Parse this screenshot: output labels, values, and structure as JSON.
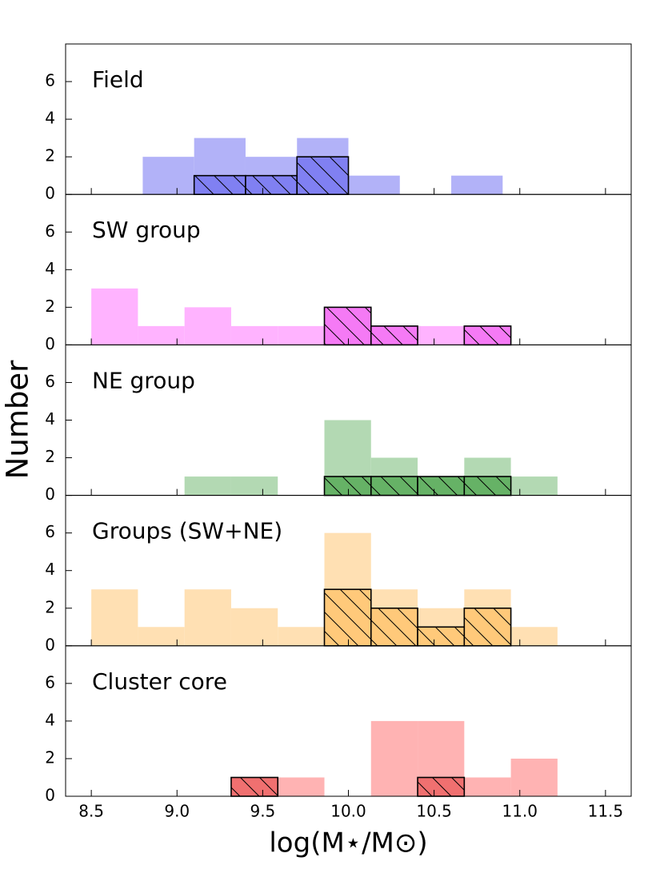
{
  "chart_data": [
    {
      "type": "histogram",
      "title": "Field",
      "bins": [
        8.8,
        9.1,
        9.4,
        9.7,
        10.0,
        10.3,
        10.6,
        10.9
      ],
      "series": [
        {
          "color": "#b2b2f8",
          "values": [
            2,
            3,
            2,
            3,
            1,
            0,
            1
          ]
        },
        {
          "color": "#8080f2",
          "hatch": true,
          "values": [
            0,
            1,
            1,
            2,
            0,
            0,
            0
          ]
        }
      ],
      "xlim": [
        8.35,
        11.65
      ],
      "xticks": [
        8.5,
        {
          "value": 9,
          "label": "9.0"
        },
        9.5,
        {
          "value": 10,
          "label": "10.0"
        },
        10.5,
        {
          "value": 11,
          "label": "11.0"
        },
        11.5
      ],
      "ylim": [
        0,
        8
      ],
      "yticks": [
        0,
        2,
        4,
        6
      ]
    },
    {
      "type": "histogram",
      "title": "SW group",
      "bins": [
        8.5,
        8.772,
        9.044,
        9.316,
        9.588,
        9.86,
        10.132,
        10.404,
        10.676,
        10.948,
        11.22
      ],
      "series": [
        {
          "color": "#ffb3ff",
          "values": [
            3,
            1,
            2,
            1,
            1,
            2,
            1,
            1,
            1,
            0
          ]
        },
        {
          "color": "#f57af5",
          "hatch": true,
          "values": [
            0,
            0,
            0,
            0,
            0,
            2,
            1,
            0,
            1,
            0
          ]
        }
      ],
      "xlim": [
        8.35,
        11.65
      ],
      "xticks": [
        8.5,
        {
          "value": 9,
          "label": "9.0"
        },
        9.5,
        {
          "value": 10,
          "label": "10.0"
        },
        10.5,
        {
          "value": 11,
          "label": "11.0"
        },
        11.5
      ],
      "ylim": [
        0,
        8
      ],
      "yticks": [
        0,
        2,
        4,
        6
      ]
    },
    {
      "type": "histogram",
      "title": "NE group",
      "ylabel": "Number",
      "bins": [
        8.5,
        8.772,
        9.044,
        9.316,
        9.588,
        9.86,
        10.132,
        10.404,
        10.676,
        10.948,
        11.22
      ],
      "series": [
        {
          "color": "#b3d9b3",
          "values": [
            0,
            0,
            1,
            1,
            0,
            4,
            2,
            1,
            2,
            1
          ]
        },
        {
          "color": "#66b266",
          "hatch": true,
          "values": [
            0,
            0,
            0,
            0,
            0,
            1,
            1,
            1,
            1,
            0
          ]
        }
      ],
      "xlim": [
        8.35,
        11.65
      ],
      "xticks": [
        8.5,
        {
          "value": 9,
          "label": "9.0"
        },
        9.5,
        {
          "value": 10,
          "label": "10.0"
        },
        10.5,
        {
          "value": 11,
          "label": "11.0"
        },
        11.5
      ],
      "ylim": [
        0,
        8
      ],
      "yticks": [
        0,
        2,
        4,
        6
      ]
    },
    {
      "type": "histogram",
      "title": "Groups (SW+NE)",
      "bins": [
        8.5,
        8.772,
        9.044,
        9.316,
        9.588,
        9.86,
        10.132,
        10.404,
        10.676,
        10.948,
        11.22
      ],
      "series": [
        {
          "color": "#ffe0b3",
          "values": [
            3,
            1,
            3,
            2,
            1,
            6,
            3,
            2,
            3,
            1
          ]
        },
        {
          "color": "#ffc97a",
          "hatch": true,
          "values": [
            0,
            0,
            0,
            0,
            0,
            3,
            2,
            1,
            2,
            0
          ]
        }
      ],
      "xlim": [
        8.35,
        11.65
      ],
      "xticks": [
        8.5,
        {
          "value": 9,
          "label": "9.0"
        },
        9.5,
        {
          "value": 10,
          "label": "10.0"
        },
        10.5,
        {
          "value": 11,
          "label": "11.0"
        },
        11.5
      ],
      "ylim": [
        0,
        8
      ],
      "yticks": [
        0,
        2,
        4,
        6
      ]
    },
    {
      "type": "histogram",
      "title": "Cluster core",
      "xlabel": "log(M⋆/M⊙)",
      "bins": [
        8.5,
        8.772,
        9.044,
        9.316,
        9.588,
        9.86,
        10.132,
        10.404,
        10.676,
        10.948,
        11.22
      ],
      "series": [
        {
          "color": "#ffb3b3",
          "values": [
            0,
            0,
            0,
            1,
            1,
            0,
            4,
            4,
            1,
            2
          ]
        },
        {
          "color": "#f07070",
          "hatch": true,
          "values": [
            0,
            0,
            0,
            1,
            0,
            0,
            0,
            1,
            0,
            0
          ]
        }
      ],
      "xlim": [
        8.35,
        11.65
      ],
      "xticks": [
        8.5,
        {
          "value": 9,
          "label": "9.0"
        },
        9.5,
        {
          "value": 10,
          "label": "10.0"
        },
        10.5,
        {
          "value": 11,
          "label": "11.0"
        },
        11.5
      ],
      "ylim": [
        0,
        8
      ],
      "yticks": [
        0,
        2,
        4,
        6
      ],
      "show_xtick_labels": true
    }
  ]
}
